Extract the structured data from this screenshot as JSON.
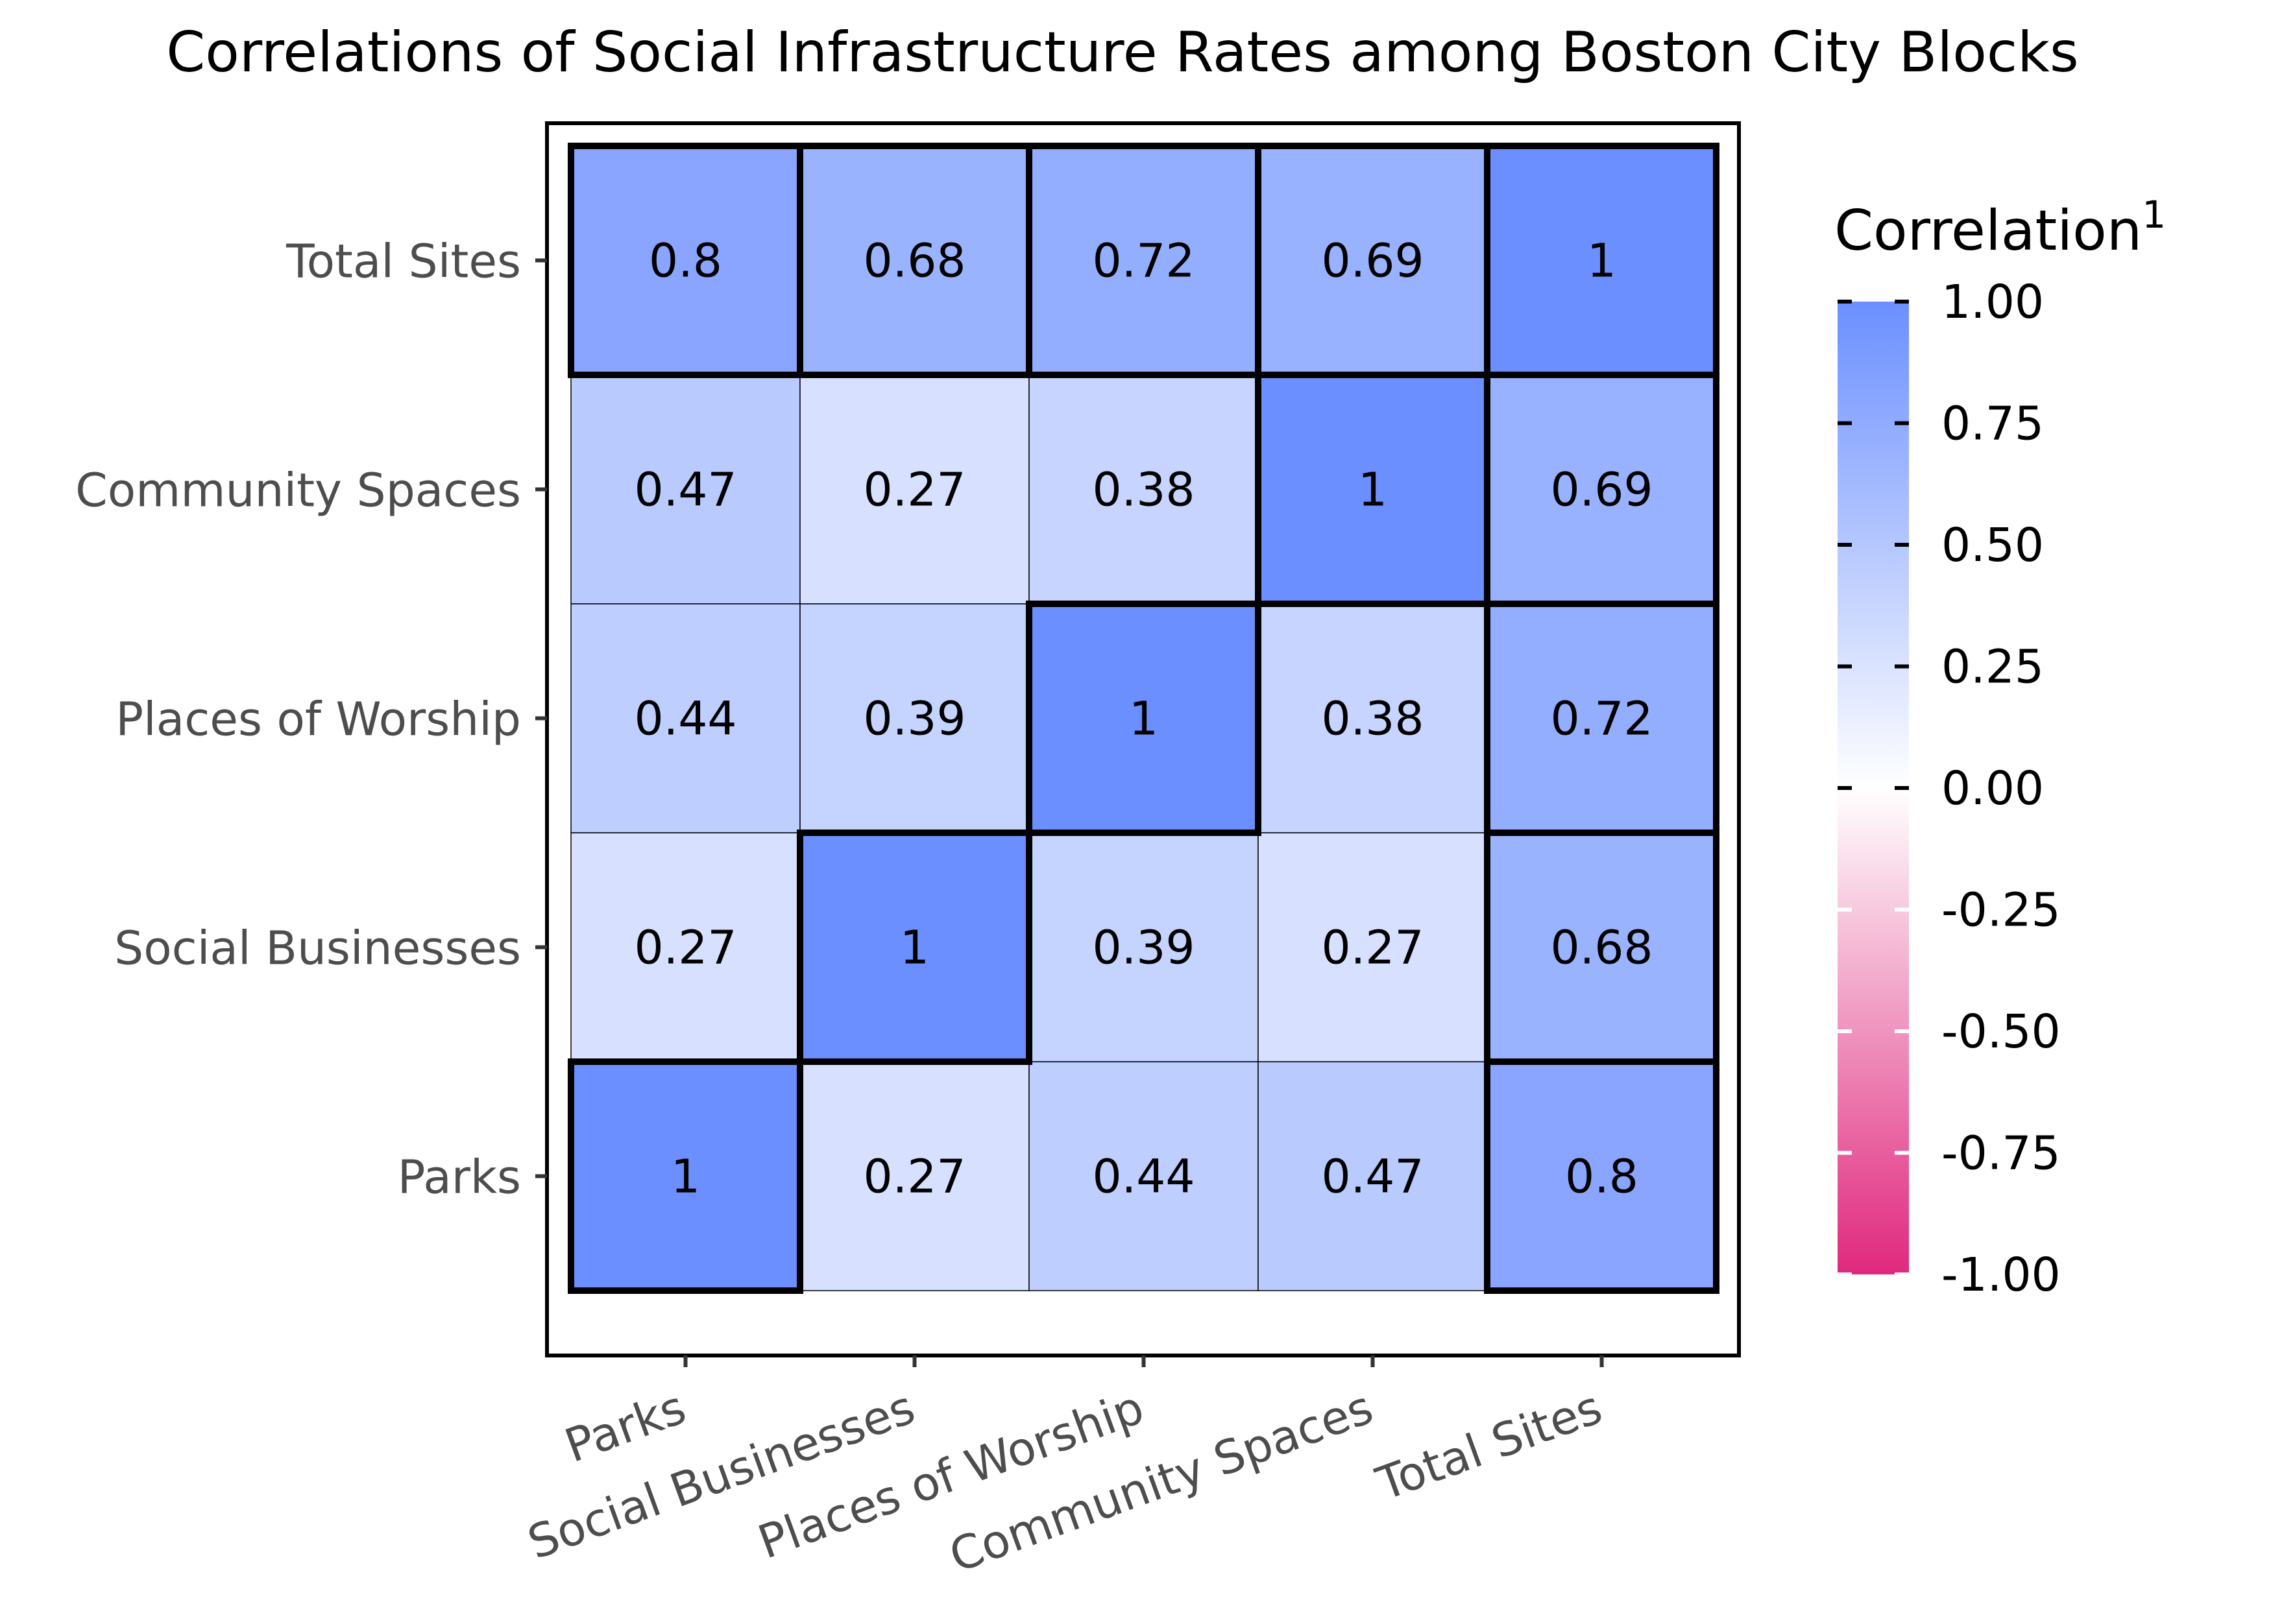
{
  "chart_data": {
    "type": "heatmap",
    "title": "Correlations of Social Infrastructure Rates among Boston City Blocks",
    "xlabel": "",
    "ylabel": "",
    "x_categories": [
      "Parks",
      "Social Businesses",
      "Places of Worship",
      "Community Spaces",
      "Total Sites"
    ],
    "y_categories": [
      "Parks",
      "Social Businesses",
      "Places of Worship",
      "Community Spaces",
      "Total Sites"
    ],
    "cells": [
      {
        "x": "Parks",
        "y": "Parks",
        "value": 1,
        "label": "1",
        "outlined": true
      },
      {
        "x": "Social Businesses",
        "y": "Parks",
        "value": 0.27,
        "label": "0.27",
        "outlined": false
      },
      {
        "x": "Places of Worship",
        "y": "Parks",
        "value": 0.44,
        "label": "0.44",
        "outlined": false
      },
      {
        "x": "Community Spaces",
        "y": "Parks",
        "value": 0.47,
        "label": "0.47",
        "outlined": false
      },
      {
        "x": "Total Sites",
        "y": "Parks",
        "value": 0.8,
        "label": "0.8",
        "outlined": true
      },
      {
        "x": "Parks",
        "y": "Social Businesses",
        "value": 0.27,
        "label": "0.27",
        "outlined": false
      },
      {
        "x": "Social Businesses",
        "y": "Social Businesses",
        "value": 1,
        "label": "1",
        "outlined": true
      },
      {
        "x": "Places of Worship",
        "y": "Social Businesses",
        "value": 0.39,
        "label": "0.39",
        "outlined": false
      },
      {
        "x": "Community Spaces",
        "y": "Social Businesses",
        "value": 0.27,
        "label": "0.27",
        "outlined": false
      },
      {
        "x": "Total Sites",
        "y": "Social Businesses",
        "value": 0.68,
        "label": "0.68",
        "outlined": true
      },
      {
        "x": "Parks",
        "y": "Places of Worship",
        "value": 0.44,
        "label": "0.44",
        "outlined": false
      },
      {
        "x": "Social Businesses",
        "y": "Places of Worship",
        "value": 0.39,
        "label": "0.39",
        "outlined": false
      },
      {
        "x": "Places of Worship",
        "y": "Places of Worship",
        "value": 1,
        "label": "1",
        "outlined": true
      },
      {
        "x": "Community Spaces",
        "y": "Places of Worship",
        "value": 0.38,
        "label": "0.38",
        "outlined": false
      },
      {
        "x": "Total Sites",
        "y": "Places of Worship",
        "value": 0.72,
        "label": "0.72",
        "outlined": true
      },
      {
        "x": "Parks",
        "y": "Community Spaces",
        "value": 0.47,
        "label": "0.47",
        "outlined": false
      },
      {
        "x": "Social Businesses",
        "y": "Community Spaces",
        "value": 0.27,
        "label": "0.27",
        "outlined": false
      },
      {
        "x": "Places of Worship",
        "y": "Community Spaces",
        "value": 0.38,
        "label": "0.38",
        "outlined": false
      },
      {
        "x": "Community Spaces",
        "y": "Community Spaces",
        "value": 1,
        "label": "1",
        "outlined": true
      },
      {
        "x": "Total Sites",
        "y": "Community Spaces",
        "value": 0.69,
        "label": "0.69",
        "outlined": true
      },
      {
        "x": "Parks",
        "y": "Total Sites",
        "value": 0.8,
        "label": "0.8",
        "outlined": true
      },
      {
        "x": "Social Businesses",
        "y": "Total Sites",
        "value": 0.68,
        "label": "0.68",
        "outlined": true
      },
      {
        "x": "Places of Worship",
        "y": "Total Sites",
        "value": 0.72,
        "label": "0.72",
        "outlined": true
      },
      {
        "x": "Community Spaces",
        "y": "Total Sites",
        "value": 0.69,
        "label": "0.69",
        "outlined": true
      },
      {
        "x": "Total Sites",
        "y": "Total Sites",
        "value": 1,
        "label": "1",
        "outlined": true
      }
    ],
    "legend": {
      "title": "Correlation",
      "title_superscript": "1",
      "placement": "right",
      "range": [
        -1,
        1
      ],
      "ticks": [
        1,
        0.75,
        0.5,
        0.25,
        0,
        -0.25,
        -0.5,
        -0.75,
        -1
      ],
      "tick_labels": [
        "1.00",
        "0.75",
        "0.50",
        "0.25",
        "0.00",
        "-0.25",
        "-0.50",
        "-0.75",
        "-1.00"
      ],
      "high_color": "#6b8fff",
      "mid_color": "#ffffff",
      "low_color": "#e0287d"
    },
    "grid": false
  }
}
